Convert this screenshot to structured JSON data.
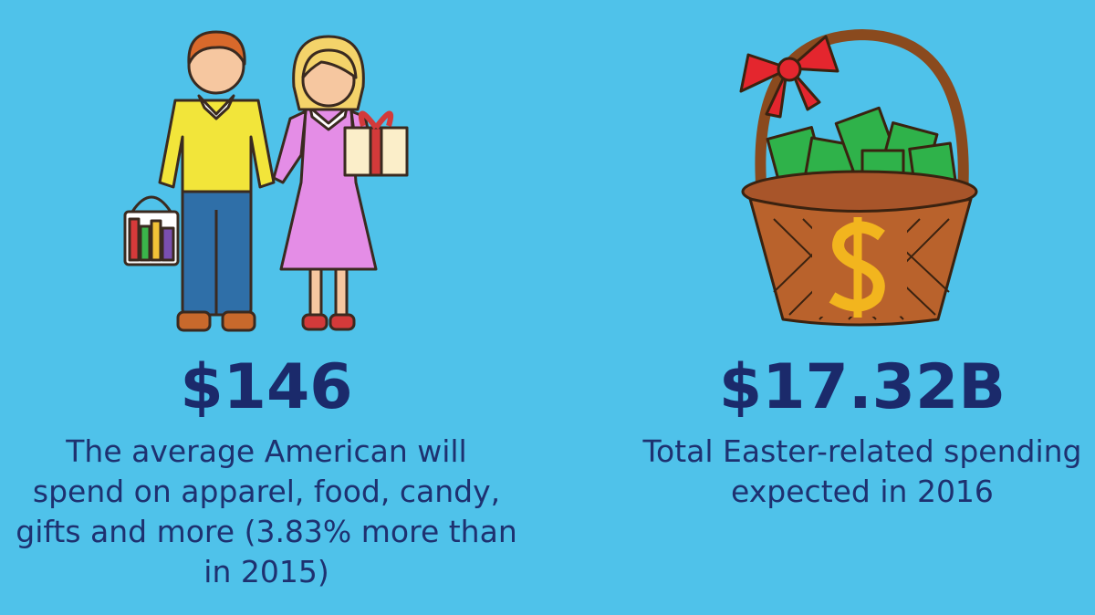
{
  "stats": [
    {
      "value": "$146",
      "description": [
        "The average American will",
        "spend on apparel, food, candy,",
        "gifts and more (3.83% more than",
        "in 2015)"
      ]
    },
    {
      "value": "$17.32B",
      "description": [
        "Total Easter-related spending",
        "expected in 2016"
      ]
    }
  ]
}
